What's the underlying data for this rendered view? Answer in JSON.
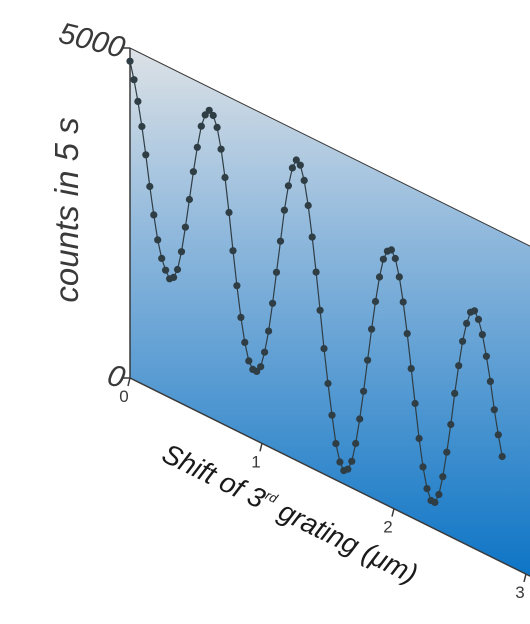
{
  "chart_data": {
    "type": "line",
    "title": "",
    "ylabel": "counts in 5 s",
    "xlabel_parts": {
      "before": "Shift of 3",
      "superscript": "rd",
      "after": " grating (μm)"
    },
    "ylim": [
      0,
      5000
    ],
    "xlim": [
      0,
      3
    ],
    "y_ticks": [
      {
        "value": 0,
        "label": "0"
      },
      {
        "value": 5000,
        "label": "5000"
      }
    ],
    "x_ticks": [
      {
        "value": 0,
        "label": "0"
      },
      {
        "value": 1,
        "label": "1"
      },
      {
        "value": 2,
        "label": "2"
      },
      {
        "value": 3,
        "label": "3"
      }
    ],
    "grid": false,
    "legend": "none",
    "marker": "filled-circle",
    "colors": {
      "data": "#2f3d45",
      "axis": "#3a3a3a",
      "panel_top": "#dde2e6",
      "panel_bottom": "#0a73c5"
    },
    "series": [
      {
        "x": [
          0.0,
          0.03,
          0.06,
          0.09,
          0.12,
          0.15,
          0.18,
          0.21,
          0.24,
          0.27,
          0.3,
          0.33,
          0.36,
          0.39,
          0.42,
          0.45,
          0.48,
          0.51,
          0.54,
          0.57,
          0.6,
          0.63,
          0.66,
          0.69,
          0.72,
          0.75,
          0.78,
          0.81,
          0.84,
          0.87,
          0.9,
          0.93,
          0.96,
          0.99,
          1.02,
          1.05,
          1.08,
          1.11,
          1.14,
          1.17,
          1.2,
          1.23,
          1.26,
          1.29,
          1.32,
          1.35,
          1.38,
          1.41,
          1.44,
          1.47,
          1.5,
          1.53,
          1.56,
          1.59,
          1.62,
          1.65,
          1.68,
          1.71,
          1.74,
          1.77,
          1.8,
          1.83,
          1.86,
          1.89,
          1.92,
          1.95,
          1.98,
          2.01,
          2.04,
          2.07,
          2.1,
          2.13,
          2.16,
          2.19,
          2.22,
          2.25,
          2.28,
          2.31,
          2.34,
          2.37,
          2.4,
          2.43,
          2.46,
          2.49,
          2.52,
          2.55,
          2.58,
          2.61,
          2.64,
          2.67,
          2.7,
          2.73,
          2.76,
          2.79,
          2.82
        ],
        "y": [
          4800,
          4550,
          4250,
          3900,
          3500,
          3050,
          2650,
          2300,
          2050,
          1900,
          1800,
          1850,
          2000,
          2300,
          2700,
          3150,
          3600,
          4000,
          4350,
          4550,
          4650,
          4600,
          4450,
          4150,
          3750,
          3250,
          2700,
          2200,
          1750,
          1400,
          1150,
          1050,
          1050,
          1150,
          1400,
          1750,
          2200,
          2700,
          3200,
          3700,
          4100,
          4400,
          4550,
          4500,
          4300,
          3950,
          3500,
          3000,
          2450,
          1900,
          1400,
          950,
          550,
          300,
          200,
          250,
          400,
          700,
          1100,
          1550,
          2050,
          2550,
          3000,
          3400,
          3700,
          3850,
          3900,
          3800,
          3550,
          3200,
          2750,
          2250,
          1750,
          1250,
          850,
          550,
          400,
          400,
          550,
          850,
          1250,
          1700,
          2200,
          2650,
          3050,
          3350,
          3550,
          3600,
          3500,
          3300,
          3000,
          2650,
          2250,
          1900,
          1600
        ]
      }
    ]
  }
}
